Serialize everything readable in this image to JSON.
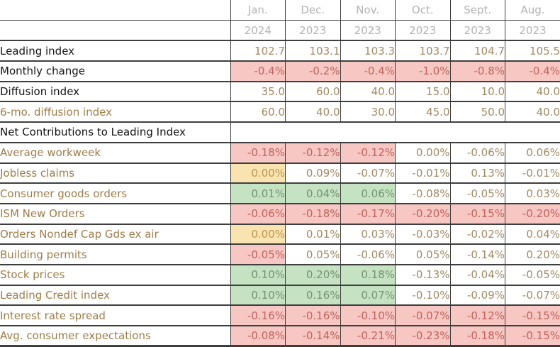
{
  "colors": {
    "border": "#3e3e3e",
    "header_text": "#b3b3b3",
    "brown_label": "#9e7c49",
    "neutral_value_text": "#a28a64",
    "negative_bg": "#f6c7c3",
    "negative_text": "#c2635c",
    "positive_bg": "#c5e3c3",
    "positive_text": "#74936f",
    "flat_bg": "#f9e3b0",
    "flat_text": "#bd9750"
  },
  "chart_data": {
    "type": "table",
    "columns": [
      {
        "month": "Jan.",
        "year": "2024"
      },
      {
        "month": "Dec.",
        "year": "2023"
      },
      {
        "month": "Nov.",
        "year": "2023"
      },
      {
        "month": "Oct.",
        "year": "2023"
      },
      {
        "month": "Sept.",
        "year": "2023"
      },
      {
        "month": "Aug.",
        "year": "2023"
      }
    ],
    "rows": [
      {
        "label": "Leading index",
        "style": "black",
        "cells": [
          {
            "v": "102.7",
            "bg": "white"
          },
          {
            "v": "103.1",
            "bg": "white"
          },
          {
            "v": "103.3",
            "bg": "white"
          },
          {
            "v": "103.7",
            "bg": "white"
          },
          {
            "v": "104.7",
            "bg": "white"
          },
          {
            "v": "105.5",
            "bg": "white"
          }
        ]
      },
      {
        "label": "Monthly change",
        "style": "black",
        "cells": [
          {
            "v": "-0.4%",
            "bg": "red"
          },
          {
            "v": "-0.2%",
            "bg": "red"
          },
          {
            "v": "-0.4%",
            "bg": "red"
          },
          {
            "v": "-1.0%",
            "bg": "red"
          },
          {
            "v": "-0.8%",
            "bg": "red"
          },
          {
            "v": "-0.4%",
            "bg": "red"
          }
        ]
      },
      {
        "label": "Diffusion index",
        "style": "black",
        "cells": [
          {
            "v": "35.0",
            "bg": "white"
          },
          {
            "v": "60.0",
            "bg": "white"
          },
          {
            "v": "40.0",
            "bg": "white"
          },
          {
            "v": "15.0",
            "bg": "white"
          },
          {
            "v": "10.0",
            "bg": "white"
          },
          {
            "v": "40.0",
            "bg": "white"
          }
        ]
      },
      {
        "label": "6-mo. diffusion index",
        "style": "brown-indent",
        "cells": [
          {
            "v": "60.0",
            "bg": "white"
          },
          {
            "v": "40.0",
            "bg": "white"
          },
          {
            "v": "30.0",
            "bg": "white"
          },
          {
            "v": "45.0",
            "bg": "white"
          },
          {
            "v": "50.0",
            "bg": "white"
          },
          {
            "v": "40.0",
            "bg": "white"
          }
        ]
      },
      {
        "label": "Net Contributions to Leading Index",
        "style": "section",
        "cells": []
      },
      {
        "label": "Average workweek",
        "style": "brown",
        "cells": [
          {
            "v": "-0.18%",
            "bg": "red"
          },
          {
            "v": "-0.12%",
            "bg": "red"
          },
          {
            "v": "-0.12%",
            "bg": "red"
          },
          {
            "v": "0.00%",
            "bg": "white"
          },
          {
            "v": "-0.06%",
            "bg": "white"
          },
          {
            "v": "0.06%",
            "bg": "white"
          }
        ]
      },
      {
        "label": "Jobless claims",
        "style": "brown",
        "cells": [
          {
            "v": "0.00%",
            "bg": "yellow"
          },
          {
            "v": "0.09%",
            "bg": "white"
          },
          {
            "v": "-0.07%",
            "bg": "white"
          },
          {
            "v": "-0.01%",
            "bg": "white"
          },
          {
            "v": "0.13%",
            "bg": "white"
          },
          {
            "v": "-0.01%",
            "bg": "white"
          }
        ]
      },
      {
        "label": "Consumer goods orders",
        "style": "brown",
        "cells": [
          {
            "v": "0.01%",
            "bg": "green"
          },
          {
            "v": "0.04%",
            "bg": "green"
          },
          {
            "v": "0.06%",
            "bg": "green"
          },
          {
            "v": "-0.08%",
            "bg": "white"
          },
          {
            "v": "-0.05%",
            "bg": "white"
          },
          {
            "v": "0.03%",
            "bg": "white"
          }
        ]
      },
      {
        "label": "ISM New Orders",
        "style": "brown",
        "cells": [
          {
            "v": "-0.06%",
            "bg": "red"
          },
          {
            "v": "-0.18%",
            "bg": "red"
          },
          {
            "v": "-0.17%",
            "bg": "red"
          },
          {
            "v": "-0.20%",
            "bg": "red"
          },
          {
            "v": "-0.15%",
            "bg": "red"
          },
          {
            "v": "-0.20%",
            "bg": "red"
          }
        ]
      },
      {
        "label": "Orders Nondef Cap Gds ex air",
        "style": "brown",
        "cells": [
          {
            "v": "0.00%",
            "bg": "yellow"
          },
          {
            "v": "0.01%",
            "bg": "white"
          },
          {
            "v": "0.03%",
            "bg": "white"
          },
          {
            "v": "-0.03%",
            "bg": "white"
          },
          {
            "v": "-0.02%",
            "bg": "white"
          },
          {
            "v": "0.04%",
            "bg": "white"
          }
        ]
      },
      {
        "label": "Building permits",
        "style": "brown",
        "cells": [
          {
            "v": "-0.05%",
            "bg": "red"
          },
          {
            "v": "0.05%",
            "bg": "white"
          },
          {
            "v": "-0.06%",
            "bg": "white"
          },
          {
            "v": "0.05%",
            "bg": "white"
          },
          {
            "v": "-0.14%",
            "bg": "white"
          },
          {
            "v": "0.20%",
            "bg": "white"
          }
        ]
      },
      {
        "label": "Stock prices",
        "style": "brown",
        "cells": [
          {
            "v": "0.10%",
            "bg": "green"
          },
          {
            "v": "0.20%",
            "bg": "green"
          },
          {
            "v": "0.18%",
            "bg": "green"
          },
          {
            "v": "-0.13%",
            "bg": "white"
          },
          {
            "v": "-0.04%",
            "bg": "white"
          },
          {
            "v": "-0.05%",
            "bg": "white"
          }
        ]
      },
      {
        "label": "Leading Credit index",
        "style": "brown",
        "cells": [
          {
            "v": "0.10%",
            "bg": "green"
          },
          {
            "v": "0.16%",
            "bg": "green"
          },
          {
            "v": "0.07%",
            "bg": "green"
          },
          {
            "v": "-0.10%",
            "bg": "white"
          },
          {
            "v": "-0.09%",
            "bg": "white"
          },
          {
            "v": "-0.07%",
            "bg": "white"
          }
        ]
      },
      {
        "label": "Interest rate spread",
        "style": "brown",
        "cells": [
          {
            "v": "-0.16%",
            "bg": "red"
          },
          {
            "v": "-0.16%",
            "bg": "red"
          },
          {
            "v": "-0.10%",
            "bg": "red"
          },
          {
            "v": "-0.07%",
            "bg": "red"
          },
          {
            "v": "-0.12%",
            "bg": "red"
          },
          {
            "v": "-0.15%",
            "bg": "red"
          }
        ]
      },
      {
        "label": "Avg. consumer expectations",
        "style": "brown",
        "cells": [
          {
            "v": "-0.08%",
            "bg": "red"
          },
          {
            "v": "-0.14%",
            "bg": "red"
          },
          {
            "v": "-0.21%",
            "bg": "red"
          },
          {
            "v": "-0.23%",
            "bg": "red"
          },
          {
            "v": "-0.18%",
            "bg": "red"
          },
          {
            "v": "-0.15%",
            "bg": "red"
          }
        ]
      }
    ]
  }
}
